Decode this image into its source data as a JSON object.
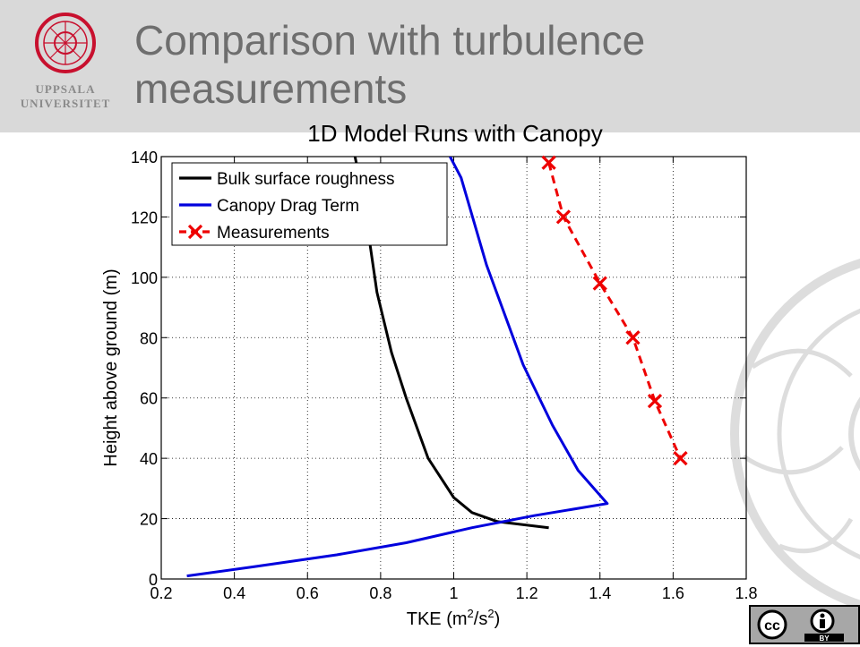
{
  "slide": {
    "title": "Comparison with turbulence measurements",
    "logo_line1": "UPPSALA",
    "logo_line2": "UNIVERSITET",
    "license": {
      "cc": "cc",
      "by": "BY"
    }
  },
  "chart_data": {
    "type": "line",
    "title": "1D Model Runs with Canopy",
    "xlabel": "TKE (m²/s²)",
    "ylabel": "Height above ground (m)",
    "xlim": [
      0.2,
      1.8
    ],
    "ylim": [
      0,
      140
    ],
    "xticks": [
      0.2,
      0.4,
      0.6,
      0.8,
      1,
      1.2,
      1.4,
      1.6,
      1.8
    ],
    "yticks": [
      0,
      20,
      40,
      60,
      80,
      100,
      120,
      140
    ],
    "grid": true,
    "legend_position": "top-left",
    "series": [
      {
        "name": "Bulk surface roughness",
        "color": "#000000",
        "style": "solid",
        "marker": "none",
        "x": [
          1.26,
          1.12,
          1.05,
          1.0,
          0.93,
          0.87,
          0.83,
          0.79,
          0.76,
          0.74,
          0.73
        ],
        "y": [
          17,
          19,
          22,
          27,
          40,
          60,
          75,
          95,
          120,
          134,
          140
        ]
      },
      {
        "name": "Canopy Drag Term",
        "color": "#0000dd",
        "style": "solid",
        "marker": "none",
        "x": [
          0.27,
          0.45,
          0.68,
          0.87,
          1.05,
          1.22,
          1.42,
          1.34,
          1.27,
          1.19,
          1.09,
          1.02,
          0.99
        ],
        "y": [
          1,
          4,
          8,
          12,
          17,
          21,
          25,
          36,
          51,
          71,
          104,
          133,
          140
        ]
      },
      {
        "name": "Measurements",
        "color": "#ee0000",
        "style": "dashed",
        "marker": "x",
        "x": [
          1.26,
          1.3,
          1.4,
          1.49,
          1.55,
          1.62
        ],
        "y": [
          138,
          120,
          98,
          80,
          59,
          40
        ]
      }
    ]
  }
}
